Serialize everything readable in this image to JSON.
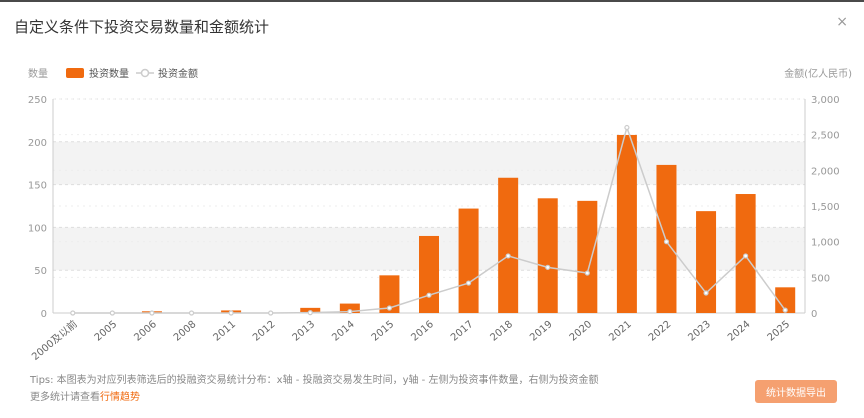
{
  "dialog": {
    "title": "自定义条件下投资交易数量和金额统计",
    "close_symbol": "×"
  },
  "footer": {
    "tips": "Tips: 本图表为对应列表筛选后的投融资交易统计分布：x轴 - 投融资交易发生时间，y轴 - 左侧为投资事件数量，右侧为投资金额",
    "more_prefix": "更多统计请查看",
    "more_link": "行情趋势",
    "export_label": "统计数据导出"
  },
  "colors": {
    "bar": "#f06a0f",
    "line": "#cccccc",
    "grid_band": "#f3f3f3",
    "axis_text": "#999999"
  },
  "chart_data": {
    "type": "bar",
    "categories": [
      "2000及以前",
      "2005",
      "2006",
      "2008",
      "2011",
      "2012",
      "2013",
      "2014",
      "2015",
      "2016",
      "2017",
      "2018",
      "2019",
      "2020",
      "2021",
      "2022",
      "2023",
      "2024",
      "2025"
    ],
    "series": [
      {
        "name": "投资数量",
        "type": "bar",
        "axis": "left",
        "values": [
          0,
          0,
          2,
          0,
          3,
          0,
          6,
          11,
          44,
          90,
          122,
          158,
          134,
          131,
          208,
          173,
          119,
          139,
          30
        ]
      },
      {
        "name": "投资金额",
        "type": "line",
        "axis": "right",
        "values": [
          0,
          0,
          0,
          0,
          0,
          0,
          5,
          20,
          70,
          250,
          420,
          800,
          640,
          560,
          2600,
          1000,
          280,
          800,
          40
        ]
      }
    ],
    "left_axis": {
      "label": "数量",
      "ylim": [
        0,
        250
      ],
      "ticks": [
        0,
        50,
        100,
        150,
        200,
        250
      ]
    },
    "right_axis": {
      "label": "金额(亿人民币)",
      "ylim": [
        0,
        3000
      ],
      "ticks": [
        "0",
        "500",
        "1,000",
        "1,500",
        "2,000",
        "2,500",
        "3,000"
      ]
    },
    "legend_placement": "top-left",
    "grid": true
  }
}
